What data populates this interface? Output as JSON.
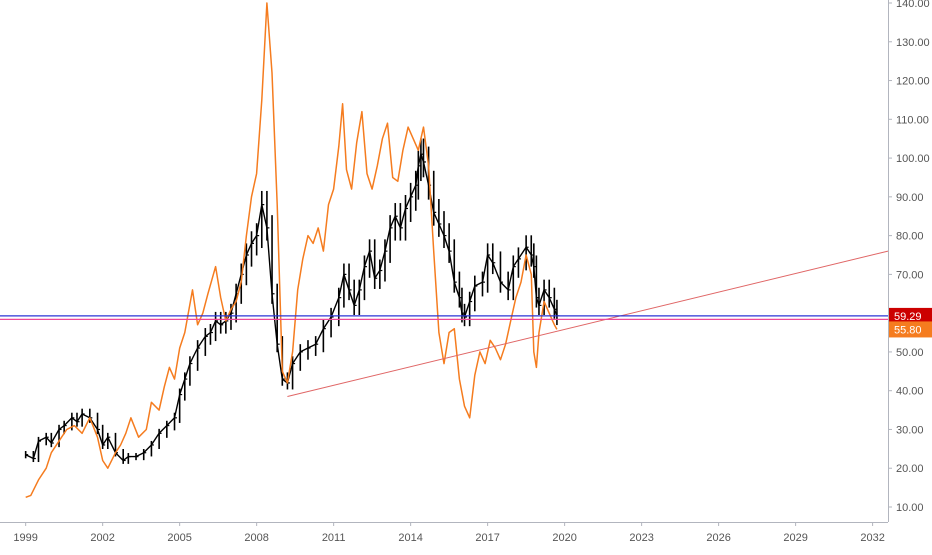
{
  "chart_data": {
    "type": "line",
    "title": "",
    "xlabel": "",
    "ylabel": "",
    "x_tick_labels": [
      "1999",
      "2002",
      "2005",
      "2008",
      "2011",
      "2014",
      "2017",
      "2020",
      "2023",
      "2026",
      "2029",
      "2032"
    ],
    "y_tick_labels": [
      "140.00",
      "130.00",
      "120.00",
      "110.00",
      "100.00",
      "90.00",
      "80.00",
      "70.00",
      "60.00",
      "50.00",
      "40.00",
      "30.00",
      "20.00",
      "10.00"
    ],
    "x_range": [
      1998.0,
      2032.6
    ],
    "y_range": [
      7.0,
      140.0
    ],
    "grid": false,
    "legend": "none",
    "series": [
      {
        "style": "ohlc-bars",
        "color": "#000000",
        "points": [
          [
            1999.0,
            23.5
          ],
          [
            1999.3,
            22.5
          ],
          [
            1999.5,
            27
          ],
          [
            1999.8,
            28
          ],
          [
            2000.0,
            26.5
          ],
          [
            2000.3,
            30
          ],
          [
            2000.5,
            31
          ],
          [
            2000.8,
            33
          ],
          [
            2001.0,
            32
          ],
          [
            2001.2,
            34
          ],
          [
            2001.5,
            33
          ],
          [
            2001.8,
            30
          ],
          [
            2002.0,
            26
          ],
          [
            2002.2,
            28
          ],
          [
            2002.5,
            24
          ],
          [
            2002.8,
            22
          ],
          [
            2003.0,
            23
          ],
          [
            2003.3,
            23
          ],
          [
            2003.6,
            24
          ],
          [
            2003.9,
            26
          ],
          [
            2004.2,
            29
          ],
          [
            2004.5,
            31
          ],
          [
            2004.8,
            33
          ],
          [
            2005.0,
            39
          ],
          [
            2005.2,
            43
          ],
          [
            2005.4,
            47
          ],
          [
            2005.7,
            51
          ],
          [
            2006.0,
            54
          ],
          [
            2006.2,
            55
          ],
          [
            2006.4,
            58
          ],
          [
            2006.6,
            57
          ],
          [
            2006.8,
            58
          ],
          [
            2007.0,
            60
          ],
          [
            2007.2,
            65
          ],
          [
            2007.4,
            70
          ],
          [
            2007.6,
            75
          ],
          [
            2007.8,
            78
          ],
          [
            2008.0,
            80
          ],
          [
            2008.2,
            88
          ],
          [
            2008.4,
            82
          ],
          [
            2008.6,
            65
          ],
          [
            2008.8,
            52
          ],
          [
            2009.0,
            43
          ],
          [
            2009.2,
            42
          ],
          [
            2009.4,
            47
          ],
          [
            2009.7,
            50
          ],
          [
            2010.0,
            51
          ],
          [
            2010.3,
            52
          ],
          [
            2010.6,
            56
          ],
          [
            2010.9,
            59
          ],
          [
            2011.2,
            64
          ],
          [
            2011.4,
            70
          ],
          [
            2011.6,
            66
          ],
          [
            2011.8,
            62
          ],
          [
            2012.0,
            66
          ],
          [
            2012.2,
            72
          ],
          [
            2012.4,
            76
          ],
          [
            2012.6,
            69
          ],
          [
            2012.8,
            71
          ],
          [
            2013.0,
            76
          ],
          [
            2013.2,
            82
          ],
          [
            2013.4,
            85
          ],
          [
            2013.6,
            82
          ],
          [
            2013.8,
            87
          ],
          [
            2014.0,
            90
          ],
          [
            2014.2,
            93
          ],
          [
            2014.3,
            98
          ],
          [
            2014.4,
            101
          ],
          [
            2014.5,
            99
          ],
          [
            2014.7,
            93
          ],
          [
            2014.9,
            86
          ],
          [
            2015.1,
            83
          ],
          [
            2015.3,
            80
          ],
          [
            2015.5,
            76
          ],
          [
            2015.7,
            68
          ],
          [
            2015.9,
            64
          ],
          [
            2016.0,
            60
          ],
          [
            2016.1,
            59
          ],
          [
            2016.3,
            63
          ],
          [
            2016.5,
            67
          ],
          [
            2016.8,
            68
          ],
          [
            2017.0,
            75
          ],
          [
            2017.2,
            73
          ],
          [
            2017.5,
            68
          ],
          [
            2017.8,
            66
          ],
          [
            2018.0,
            72
          ],
          [
            2018.2,
            74
          ],
          [
            2018.5,
            77
          ],
          [
            2018.7,
            75
          ],
          [
            2018.8,
            72
          ],
          [
            2018.9,
            64
          ],
          [
            2019.0,
            62
          ],
          [
            2019.2,
            66
          ],
          [
            2019.4,
            64
          ],
          [
            2019.6,
            61
          ],
          [
            2019.7,
            59.3
          ]
        ]
      },
      {
        "style": "line",
        "color": "#f57c1f",
        "points": [
          [
            1999.0,
            12.5
          ],
          [
            1999.2,
            13
          ],
          [
            1999.5,
            17
          ],
          [
            1999.8,
            20
          ],
          [
            2000.0,
            24
          ],
          [
            2000.3,
            27
          ],
          [
            2000.6,
            30
          ],
          [
            2000.9,
            31
          ],
          [
            2001.2,
            29
          ],
          [
            2001.5,
            33
          ],
          [
            2001.8,
            28
          ],
          [
            2002.0,
            22
          ],
          [
            2002.2,
            20
          ],
          [
            2002.5,
            24
          ],
          [
            2002.7,
            26
          ],
          [
            2002.9,
            29
          ],
          [
            2003.1,
            33
          ],
          [
            2003.4,
            28
          ],
          [
            2003.7,
            30
          ],
          [
            2003.9,
            37
          ],
          [
            2004.2,
            35
          ],
          [
            2004.4,
            41
          ],
          [
            2004.6,
            46
          ],
          [
            2004.8,
            43
          ],
          [
            2005.0,
            51
          ],
          [
            2005.2,
            55
          ],
          [
            2005.5,
            66
          ],
          [
            2005.7,
            57
          ],
          [
            2005.9,
            60
          ],
          [
            2006.1,
            65
          ],
          [
            2006.4,
            72
          ],
          [
            2006.6,
            64
          ],
          [
            2006.8,
            58
          ],
          [
            2007.0,
            61
          ],
          [
            2007.2,
            63
          ],
          [
            2007.4,
            68
          ],
          [
            2007.6,
            80
          ],
          [
            2007.8,
            90
          ],
          [
            2008.0,
            96
          ],
          [
            2008.2,
            115
          ],
          [
            2008.4,
            140
          ],
          [
            2008.6,
            122
          ],
          [
            2008.8,
            88
          ],
          [
            2009.0,
            45
          ],
          [
            2009.2,
            42
          ],
          [
            2009.4,
            50
          ],
          [
            2009.6,
            66
          ],
          [
            2009.8,
            74
          ],
          [
            2010.0,
            80
          ],
          [
            2010.2,
            78
          ],
          [
            2010.4,
            82
          ],
          [
            2010.6,
            76
          ],
          [
            2010.8,
            88
          ],
          [
            2011.0,
            92
          ],
          [
            2011.2,
            103
          ],
          [
            2011.35,
            114
          ],
          [
            2011.5,
            97
          ],
          [
            2011.7,
            92
          ],
          [
            2011.9,
            104
          ],
          [
            2012.1,
            112
          ],
          [
            2012.3,
            96
          ],
          [
            2012.5,
            92
          ],
          [
            2012.7,
            98
          ],
          [
            2012.9,
            105
          ],
          [
            2013.1,
            109
          ],
          [
            2013.3,
            95
          ],
          [
            2013.5,
            94
          ],
          [
            2013.7,
            102
          ],
          [
            2013.9,
            108
          ],
          [
            2014.1,
            105
          ],
          [
            2014.3,
            102
          ],
          [
            2014.5,
            108
          ],
          [
            2014.7,
            98
          ],
          [
            2014.9,
            76
          ],
          [
            2015.1,
            55
          ],
          [
            2015.3,
            47
          ],
          [
            2015.5,
            55
          ],
          [
            2015.7,
            56
          ],
          [
            2015.9,
            43
          ],
          [
            2016.1,
            36
          ],
          [
            2016.3,
            33
          ],
          [
            2016.5,
            44
          ],
          [
            2016.7,
            50
          ],
          [
            2016.9,
            47
          ],
          [
            2017.1,
            53
          ],
          [
            2017.3,
            51
          ],
          [
            2017.5,
            48
          ],
          [
            2017.7,
            52
          ],
          [
            2017.9,
            58
          ],
          [
            2018.1,
            64
          ],
          [
            2018.3,
            68
          ],
          [
            2018.5,
            75
          ],
          [
            2018.7,
            70
          ],
          [
            2018.8,
            50
          ],
          [
            2018.9,
            46
          ],
          [
            2019.0,
            55
          ],
          [
            2019.2,
            63
          ],
          [
            2019.4,
            60
          ],
          [
            2019.6,
            57
          ],
          [
            2019.7,
            55.8
          ]
        ]
      },
      {
        "style": "trendline",
        "color": "#e06666",
        "points": [
          [
            2009.2,
            38.5
          ],
          [
            2032.6,
            76
          ]
        ]
      },
      {
        "style": "horizontal-line",
        "color": "#2b35d6",
        "points": [
          [
            1998.0,
            59.29
          ],
          [
            2032.6,
            59.29
          ]
        ]
      },
      {
        "style": "horizontal-line",
        "color": "#ec4899",
        "points": [
          [
            1998.0,
            58.4
          ],
          [
            2032.6,
            58.4
          ]
        ]
      }
    ],
    "price_labels": [
      {
        "text": "59.29",
        "value": 59.29,
        "bg_color": "#cc0000",
        "text_color": "#ffffff"
      },
      {
        "text": "55.80",
        "value": 55.8,
        "bg_color": "#f57c1f",
        "text_color": "#ffffff"
      }
    ],
    "colors": {
      "background": "#ffffff",
      "axis_text": "#555555",
      "axis_line": "#b2b5be"
    }
  }
}
